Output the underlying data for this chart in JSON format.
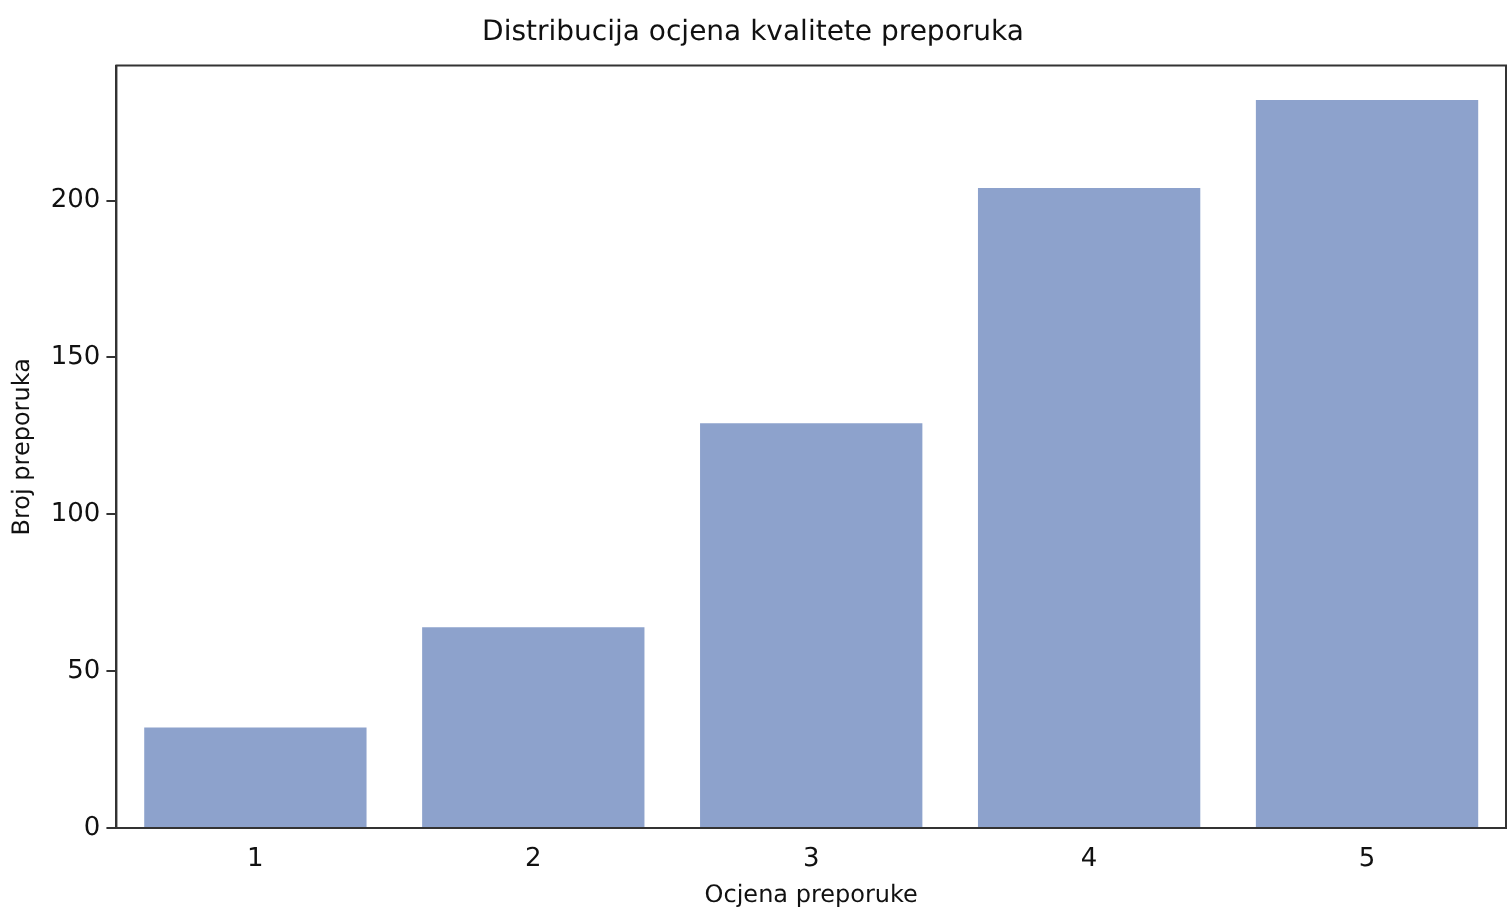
{
  "chart_data": {
    "type": "bar",
    "title": "Distribucija ocjena kvalitete preporuka",
    "xlabel": "Ocjena preporuke",
    "ylabel": "Broj preporuka",
    "categories": [
      "1",
      "2",
      "3",
      "4",
      "5"
    ],
    "values": [
      32,
      64,
      129,
      204,
      232
    ],
    "color": "#8da2cc",
    "ylim": [
      0,
      243
    ],
    "yticks": [
      0,
      50,
      100,
      150,
      200
    ],
    "grid": false,
    "legend": false
  }
}
